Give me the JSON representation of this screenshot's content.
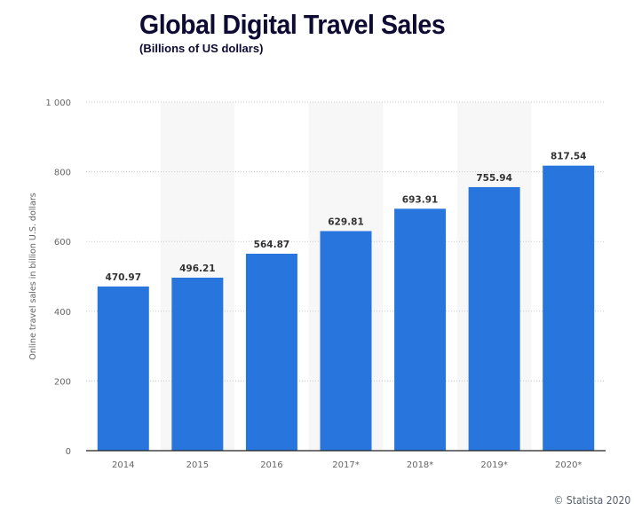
{
  "chart_data": {
    "type": "bar",
    "title": "Global Digital Travel Sales",
    "subtitle": "(Billions of US dollars)",
    "xlabel": "",
    "ylabel": "Online travel sales in billion U.S. dollars",
    "categories": [
      "2014",
      "2015",
      "2016",
      "2017*",
      "2018*",
      "2019*",
      "2020*"
    ],
    "values": [
      470.97,
      496.21,
      564.87,
      629.81,
      693.91,
      755.94,
      817.54
    ],
    "value_labels": [
      "470.97",
      "496.21",
      "564.87",
      "629.81",
      "693.91",
      "755.94",
      "817.54"
    ],
    "ylim": [
      0,
      1000
    ],
    "yticks": [
      0,
      200,
      400,
      600,
      800,
      1000
    ],
    "ytick_labels": [
      "0",
      "200",
      "400",
      "600",
      "800",
      "1 000"
    ],
    "grid": true,
    "bar_color": "#2876dd",
    "credit": "© Statista 2020"
  }
}
